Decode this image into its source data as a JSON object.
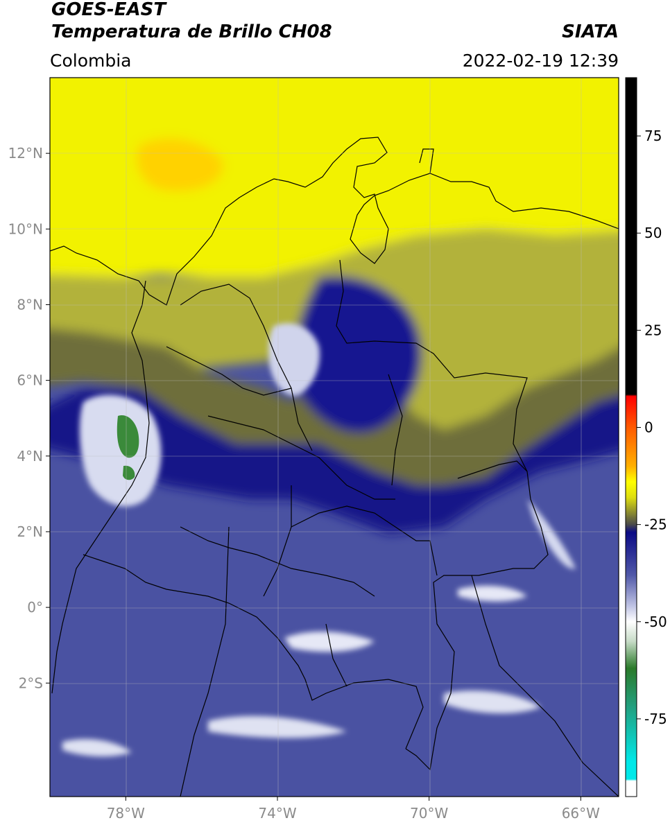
{
  "header": {
    "satellite": "GOES-EAST",
    "product": "Temperatura de Brillo CH08",
    "agency": "SIATA",
    "region": "Colombia",
    "datetime": "2022-02-19 12:39"
  },
  "map": {
    "lon_range": [
      -80,
      -65
    ],
    "lat_range": [
      -5,
      14
    ],
    "lat_ticks": [
      {
        "v": 12,
        "t": "12°N"
      },
      {
        "v": 10,
        "t": "10°N"
      },
      {
        "v": 8,
        "t": "8°N"
      },
      {
        "v": 6,
        "t": "6°N"
      },
      {
        "v": 4,
        "t": "4°N"
      },
      {
        "v": 2,
        "t": "2°N"
      },
      {
        "v": 0,
        "t": "0°"
      },
      {
        "v": -2,
        "t": "2°S"
      }
    ],
    "lon_ticks": [
      {
        "v": -78,
        "t": "78°W"
      },
      {
        "v": -74,
        "t": "74°W"
      },
      {
        "v": -70,
        "t": "70°W"
      },
      {
        "v": -66,
        "t": "66°W"
      }
    ]
  },
  "colorbar": {
    "range": [
      -95,
      90
    ],
    "ticks": [
      {
        "v": 75,
        "t": "75"
      },
      {
        "v": 50,
        "t": "50"
      },
      {
        "v": 25,
        "t": "25"
      },
      {
        "v": 0,
        "t": "0"
      },
      {
        "v": -25,
        "t": "-25"
      },
      {
        "v": -50,
        "t": "-50"
      },
      {
        "v": -75,
        "t": "-75"
      }
    ],
    "stops": [
      {
        "v": 90,
        "c": "#000000"
      },
      {
        "v": 8.5,
        "c": "#000000"
      },
      {
        "v": 8,
        "c": "#ff0000"
      },
      {
        "v": 0,
        "c": "#ff5a00"
      },
      {
        "v": -10,
        "c": "#ffb000"
      },
      {
        "v": -14,
        "c": "#ffff00"
      },
      {
        "v": -18,
        "c": "#dede10"
      },
      {
        "v": -22,
        "c": "#8a8a30"
      },
      {
        "v": -25,
        "c": "#4a4a4a"
      },
      {
        "v": -27,
        "c": "#0a0a85"
      },
      {
        "v": -38,
        "c": "#5058a8"
      },
      {
        "v": -46,
        "c": "#c0c4e4"
      },
      {
        "v": -50,
        "c": "#ffffff"
      },
      {
        "v": -55,
        "c": "#c8dcc8"
      },
      {
        "v": -62,
        "c": "#2a7a2a"
      },
      {
        "v": -72,
        "c": "#22a080"
      },
      {
        "v": -86,
        "c": "#00e8e8"
      },
      {
        "v": -90.5,
        "c": "#00e8e8"
      },
      {
        "v": -91,
        "c": "#ffffff"
      },
      {
        "v": -95,
        "c": "#ffffff"
      }
    ]
  },
  "colors": {
    "yellow": "#ffff00",
    "olive": "#8a8a30",
    "navy": "#0a0a85",
    "blue": "#4a52a2",
    "green": "#3a8a3a"
  }
}
